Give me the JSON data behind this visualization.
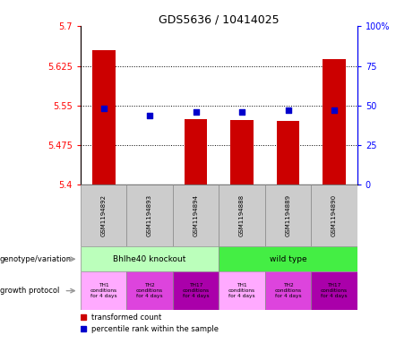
{
  "title": "GDS5636 / 10414025",
  "samples": [
    "GSM1194892",
    "GSM1194893",
    "GSM1194894",
    "GSM1194888",
    "GSM1194889",
    "GSM1194890"
  ],
  "transformed_counts": [
    5.655,
    5.401,
    5.525,
    5.522,
    5.521,
    5.638
  ],
  "percentile_ranks": [
    48,
    44,
    46,
    46,
    47,
    47
  ],
  "ylim_left": [
    5.4,
    5.7
  ],
  "ylim_right": [
    0,
    100
  ],
  "yticks_left": [
    5.4,
    5.475,
    5.55,
    5.625,
    5.7
  ],
  "yticks_right": [
    0,
    25,
    50,
    75,
    100
  ],
  "ytick_labels_left": [
    "5.4",
    "5.475",
    "5.55",
    "5.625",
    "5.7"
  ],
  "ytick_labels_right": [
    "0",
    "25",
    "50",
    "75",
    "100%"
  ],
  "bar_color": "#cc0000",
  "dot_color": "#0000cc",
  "bar_width": 0.5,
  "genotype_labels": [
    "Bhlhe40 knockout",
    "wild type"
  ],
  "genotype_colors": [
    "#bbffbb",
    "#44ee44"
  ],
  "growth_colors": [
    "#ffaaff",
    "#dd44dd",
    "#aa00aa",
    "#ffaaff",
    "#dd44dd",
    "#aa00aa"
  ],
  "growth_labels": [
    "TH1\nconditions\nfor 4 days",
    "TH2\nconditions\nfor 4 days",
    "TH17\nconditions\nfor 4 days",
    "TH1\nconditions\nfor 4 days",
    "TH2\nconditions\nfor 4 days",
    "TH17\nconditions\nfor 4 days"
  ],
  "legend_red": "transformed count",
  "legend_blue": "percentile rank within the sample",
  "label_genotype": "genotype/variation",
  "label_growth": "growth protocol",
  "sample_bg": "#cccccc",
  "arrow_color": "#999999"
}
